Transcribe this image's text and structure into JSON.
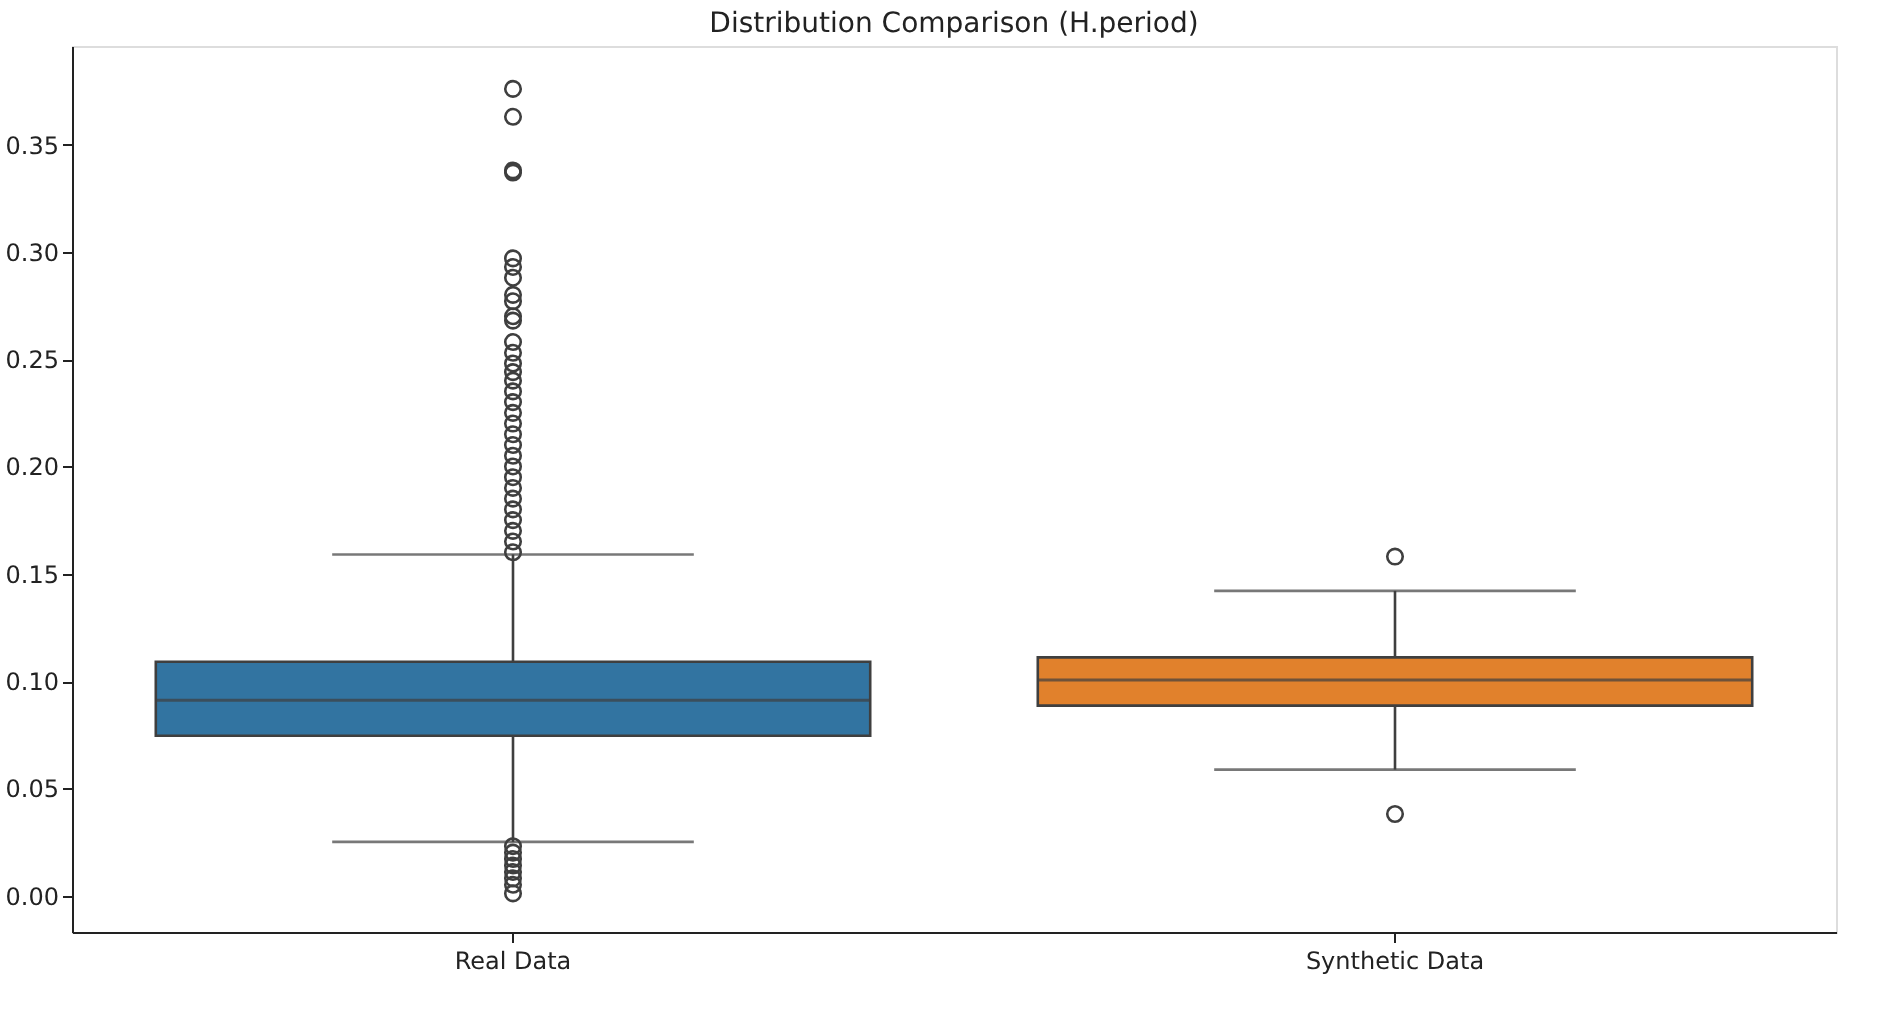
{
  "chart_data": {
    "type": "box",
    "title": "Distribution Comparison (H.period)",
    "categories": [
      "Real Data",
      "Synthetic Data"
    ],
    "colors": [
      "#3274a1",
      "#e1812c"
    ],
    "boxes": [
      {
        "low": 0.025,
        "q1": 0.0745,
        "median": 0.091,
        "q3": 0.109,
        "high": 0.159,
        "outliers": [
          0.376,
          0.363,
          0.338,
          0.337,
          0.297,
          0.293,
          0.288,
          0.28,
          0.277,
          0.27,
          0.268,
          0.258,
          0.253,
          0.248,
          0.244,
          0.24,
          0.235,
          0.23,
          0.225,
          0.22,
          0.215,
          0.21,
          0.205,
          0.2,
          0.195,
          0.19,
          0.185,
          0.18,
          0.175,
          0.17,
          0.165,
          0.16,
          0.023,
          0.02,
          0.017,
          0.014,
          0.011,
          0.008,
          0.005,
          0.001
        ]
      },
      {
        "low": 0.0587,
        "q1": 0.0885,
        "median": 0.1005,
        "q3": 0.111,
        "high": 0.142,
        "outliers": [
          0.158,
          0.038
        ]
      }
    ],
    "ylim": [
      -0.017,
      0.396
    ],
    "yticks": [
      {
        "value": 0,
        "label": "0.00"
      },
      {
        "value": 0.05,
        "label": "0.05"
      },
      {
        "value": 0.1,
        "label": "0.10"
      },
      {
        "value": 0.15,
        "label": "0.15"
      },
      {
        "value": 0.2,
        "label": "0.20"
      },
      {
        "value": 0.25,
        "label": "0.25"
      },
      {
        "value": 0.3,
        "label": "0.30"
      },
      {
        "value": 0.35,
        "label": "0.35"
      }
    ],
    "grid": false
  }
}
